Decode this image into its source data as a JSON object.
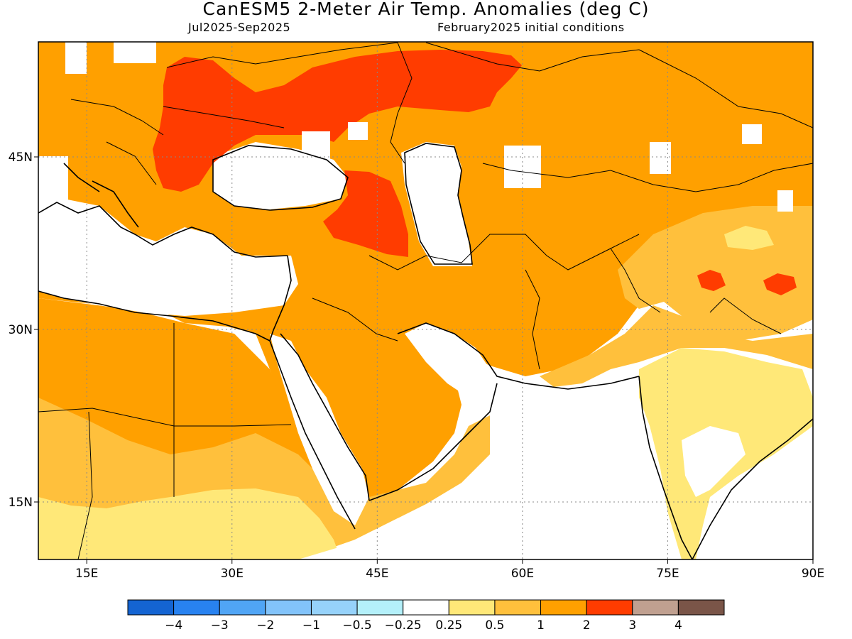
{
  "header": {
    "title": "CanESM5 2-Meter Air Temp. Anomalies (deg C)",
    "period": "Jul2025-Sep2025",
    "init": "February2025 initial conditions"
  },
  "axes": {
    "lon_ticks": [
      {
        "lon": 15,
        "label": "15E"
      },
      {
        "lon": 30,
        "label": "30E"
      },
      {
        "lon": 45,
        "label": "45E"
      },
      {
        "lon": 60,
        "label": "60E"
      },
      {
        "lon": 75,
        "label": "75E"
      },
      {
        "lon": 90,
        "label": "90E"
      }
    ],
    "lat_ticks": [
      {
        "lat": 45,
        "label": "45N"
      },
      {
        "lat": 30,
        "label": "30N"
      },
      {
        "lat": 15,
        "label": "15N"
      }
    ],
    "lon_range": [
      10,
      90
    ],
    "lat_range": [
      10,
      55
    ]
  },
  "colorbar": {
    "colors": [
      "#1464d2",
      "#2882f0",
      "#50a5f5",
      "#82c3fa",
      "#96d2fa",
      "#b4f0fa",
      "#ffffff",
      "#ffe878",
      "#ffc03c",
      "#ffa000",
      "#ff3c00",
      "#c0a090",
      "#7a5548"
    ],
    "labels": [
      "-4",
      "-3",
      "-2",
      "-1",
      "-0.5",
      "-0.25",
      "0.25",
      "0.5",
      "1",
      "2",
      "3",
      "4"
    ]
  }
}
